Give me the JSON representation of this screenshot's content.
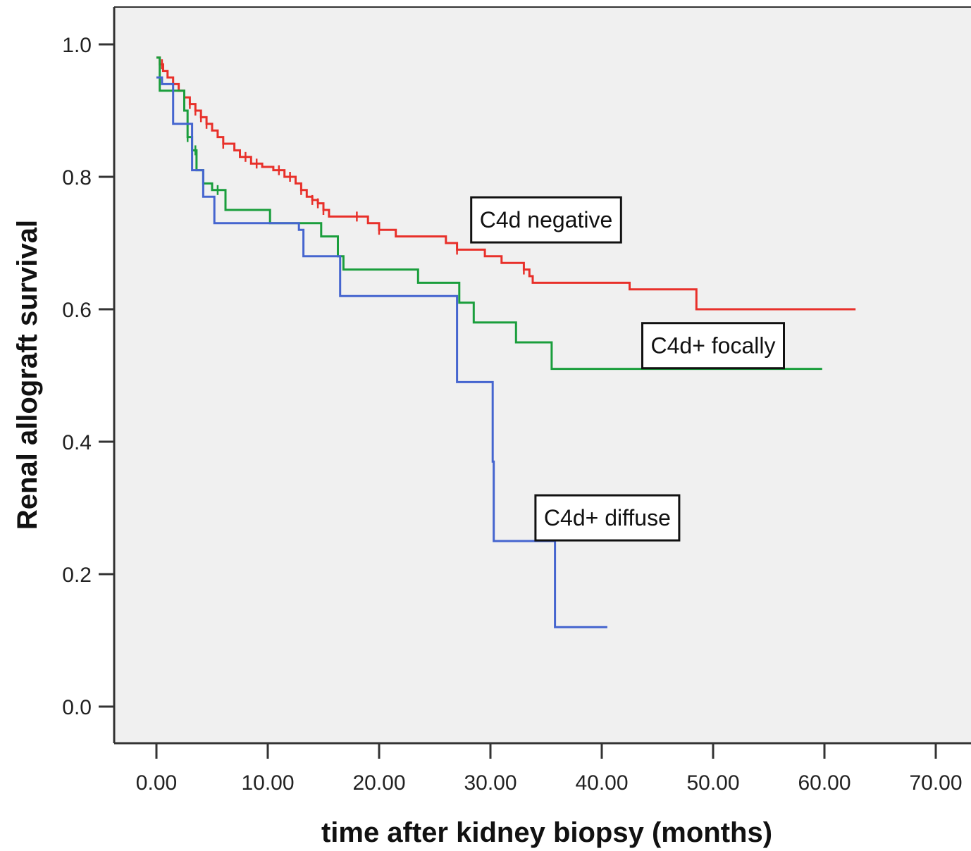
{
  "chart_data": {
    "type": "line",
    "subtype": "kaplan-meier-step",
    "xlabel": "time after kidney biopsy (months)",
    "ylabel": "Renal allograft survival",
    "xlim": [
      0,
      70
    ],
    "ylim": [
      0,
      1
    ],
    "x_ticks": [
      "0.00",
      "10.00",
      "20.00",
      "30.00",
      "40.00",
      "50.00",
      "60.00",
      "70.00"
    ],
    "y_ticks": [
      "0.0",
      "0.2",
      "0.4",
      "0.6",
      "0.8",
      "1.0"
    ],
    "grid": false,
    "background": "#f0f0f0",
    "series": [
      {
        "key": "red",
        "color": "#e8302a",
        "points": [
          [
            0,
            0.98
          ],
          [
            0.3,
            0.97
          ],
          [
            0.6,
            0.96
          ],
          [
            1.0,
            0.95
          ],
          [
            1.5,
            0.94
          ],
          [
            2.0,
            0.93
          ],
          [
            2.5,
            0.92
          ],
          [
            3.0,
            0.91
          ],
          [
            3.5,
            0.9
          ],
          [
            4.0,
            0.89
          ],
          [
            4.5,
            0.88
          ],
          [
            5.0,
            0.87
          ],
          [
            5.5,
            0.86
          ],
          [
            6.0,
            0.85
          ],
          [
            7.0,
            0.84
          ],
          [
            7.5,
            0.83
          ],
          [
            8.5,
            0.82
          ],
          [
            9.5,
            0.815
          ],
          [
            10.5,
            0.81
          ],
          [
            11.5,
            0.8
          ],
          [
            12.5,
            0.79
          ],
          [
            13.0,
            0.78
          ],
          [
            13.5,
            0.77
          ],
          [
            14.0,
            0.765
          ],
          [
            14.5,
            0.76
          ],
          [
            15.0,
            0.75
          ],
          [
            15.5,
            0.74
          ],
          [
            19.0,
            0.73
          ],
          [
            20.0,
            0.72
          ],
          [
            21.5,
            0.71
          ],
          [
            26.0,
            0.7
          ],
          [
            27.0,
            0.69
          ],
          [
            29.5,
            0.68
          ],
          [
            31.0,
            0.67
          ],
          [
            33.0,
            0.66
          ],
          [
            33.5,
            0.65
          ],
          [
            33.8,
            0.64
          ],
          [
            42.5,
            0.63
          ],
          [
            48.5,
            0.6
          ],
          [
            62.8,
            0.6
          ]
        ],
        "censor_x": [
          0.5,
          1.5,
          2.5,
          3.0,
          3.5,
          4.0,
          4.5,
          6.0,
          8.0,
          9.0,
          11.0,
          12.0,
          13.0,
          14.0,
          14.5,
          15.0,
          18.0,
          20.0,
          27.0,
          33.0
        ]
      },
      {
        "key": "green",
        "color": "#1a9e3c",
        "points": [
          [
            0,
            0.98
          ],
          [
            0.3,
            0.93
          ],
          [
            2.5,
            0.9
          ],
          [
            2.8,
            0.86
          ],
          [
            3.2,
            0.84
          ],
          [
            3.6,
            0.81
          ],
          [
            4.2,
            0.79
          ],
          [
            5.0,
            0.78
          ],
          [
            6.2,
            0.75
          ],
          [
            10.2,
            0.73
          ],
          [
            14.8,
            0.71
          ],
          [
            16.3,
            0.68
          ],
          [
            16.8,
            0.66
          ],
          [
            23.5,
            0.64
          ],
          [
            27.2,
            0.61
          ],
          [
            28.5,
            0.58
          ],
          [
            32.3,
            0.55
          ],
          [
            35.5,
            0.51
          ],
          [
            59.8,
            0.51
          ]
        ],
        "censor_x": [
          2.8,
          3.5,
          4.2,
          5.5
        ]
      },
      {
        "key": "blue",
        "color": "#4565cf",
        "points": [
          [
            0,
            0.95
          ],
          [
            0.5,
            0.94
          ],
          [
            1.5,
            0.88
          ],
          [
            3.2,
            0.81
          ],
          [
            4.2,
            0.77
          ],
          [
            5.2,
            0.73
          ],
          [
            12.8,
            0.72
          ],
          [
            13.2,
            0.68
          ],
          [
            16.5,
            0.62
          ],
          [
            27.0,
            0.49
          ],
          [
            30.2,
            0.37
          ],
          [
            30.3,
            0.25
          ],
          [
            35.8,
            0.12
          ],
          [
            40.5,
            0.12
          ]
        ],
        "censor_x": []
      }
    ],
    "annotations": [
      {
        "text": "C4d negative",
        "x": 35,
        "y": 0.735
      },
      {
        "text": "C4d+ focally",
        "x": 50,
        "y": 0.545
      },
      {
        "text": "C4d+ diffuse",
        "x": 40.5,
        "y": 0.285
      }
    ]
  }
}
